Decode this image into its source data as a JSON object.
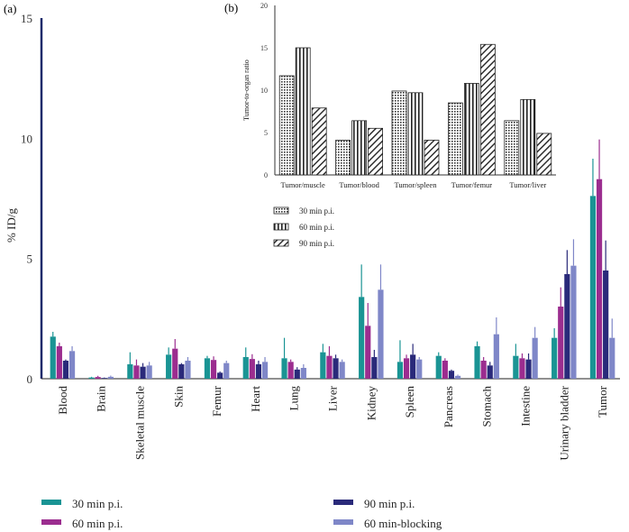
{
  "chart_data": [
    {
      "panel": "(a)",
      "type": "bar",
      "ylabel": "% ID/g",
      "ylim": [
        0,
        15
      ],
      "yticks": [
        "0",
        "5",
        "10",
        "15"
      ],
      "categories": [
        "Blood",
        "Brain",
        "Skeletal muscle",
        "Skin",
        "Femur",
        "Heart",
        "Lung",
        "Liver",
        "Kidney",
        "Spleen",
        "Pancreas",
        "Stomach",
        "Intestine",
        "Urinary bladder",
        "Tumor"
      ],
      "series": [
        {
          "name": "30 min p.i.",
          "color": "#1a9494",
          "values": [
            1.75,
            0.05,
            0.6,
            1.0,
            0.85,
            0.9,
            0.85,
            1.1,
            3.4,
            0.7,
            0.95,
            1.35,
            0.95,
            1.7,
            7.6
          ],
          "errors": [
            0.2,
            0.03,
            0.5,
            0.3,
            0.1,
            0.4,
            0.85,
            0.35,
            1.35,
            0.9,
            0.15,
            0.2,
            0.5,
            0.4,
            1.55
          ]
        },
        {
          "name": "60 min p.i.",
          "color": "#9b2d8f",
          "values": [
            1.35,
            0.07,
            0.55,
            1.25,
            0.78,
            0.82,
            0.7,
            0.95,
            2.2,
            0.85,
            0.75,
            0.75,
            0.85,
            3.0,
            8.3
          ],
          "errors": [
            0.15,
            0.05,
            0.25,
            0.4,
            0.15,
            0.2,
            0.1,
            0.4,
            0.95,
            0.15,
            0.1,
            0.15,
            0.2,
            0.8,
            1.65
          ]
        },
        {
          "name": "90 min p.i.",
          "color": "#2a2a7a",
          "values": [
            0.75,
            0.03,
            0.5,
            0.6,
            0.25,
            0.6,
            0.38,
            0.85,
            0.9,
            1.0,
            0.33,
            0.55,
            0.8,
            4.35,
            4.5
          ],
          "errors": [
            0.05,
            0.02,
            0.15,
            0.05,
            0.05,
            0.15,
            0.1,
            0.15,
            0.3,
            0.45,
            0.05,
            0.15,
            0.25,
            1.0,
            1.25
          ]
        },
        {
          "name": "60 min-blocking",
          "color": "#7f87c8",
          "values": [
            1.15,
            0.08,
            0.55,
            0.75,
            0.65,
            0.7,
            0.45,
            0.7,
            3.7,
            0.8,
            0.12,
            1.85,
            1.7,
            4.7,
            1.7
          ],
          "errors": [
            0.2,
            0.05,
            0.15,
            0.15,
            0.1,
            0.2,
            0.15,
            0.1,
            1.05,
            0.1,
            0.05,
            0.7,
            0.45,
            1.1,
            0.8
          ]
        }
      ],
      "legend": [
        "30 min p.i.",
        "60 min p.i.",
        "90 min p.i.",
        "60 min-blocking"
      ]
    },
    {
      "panel": "(b)",
      "type": "bar",
      "ylabel": "Tumor-to-organ ratio",
      "ylim": [
        0,
        20
      ],
      "yticks": [
        "0",
        "5",
        "10",
        "15",
        "20"
      ],
      "categories": [
        "Tumor/muscle",
        "Tumor/blood",
        "Tumor/spleen",
        "Tumor/femur",
        "Tumor/liver"
      ],
      "series": [
        {
          "name": "30 min p.i.",
          "pattern": "dots",
          "values": [
            11.7,
            4.1,
            9.9,
            8.5,
            6.4
          ]
        },
        {
          "name": "60 min p.i.",
          "pattern": "vertical",
          "values": [
            15.0,
            6.4,
            9.7,
            10.8,
            8.9
          ]
        },
        {
          "name": "90 min p.i.",
          "pattern": "diagonal",
          "values": [
            7.9,
            5.5,
            4.1,
            15.4,
            4.9
          ]
        }
      ],
      "legend": [
        "30 min p.i.",
        "60 min p.i.",
        "90 min p.i."
      ]
    }
  ]
}
